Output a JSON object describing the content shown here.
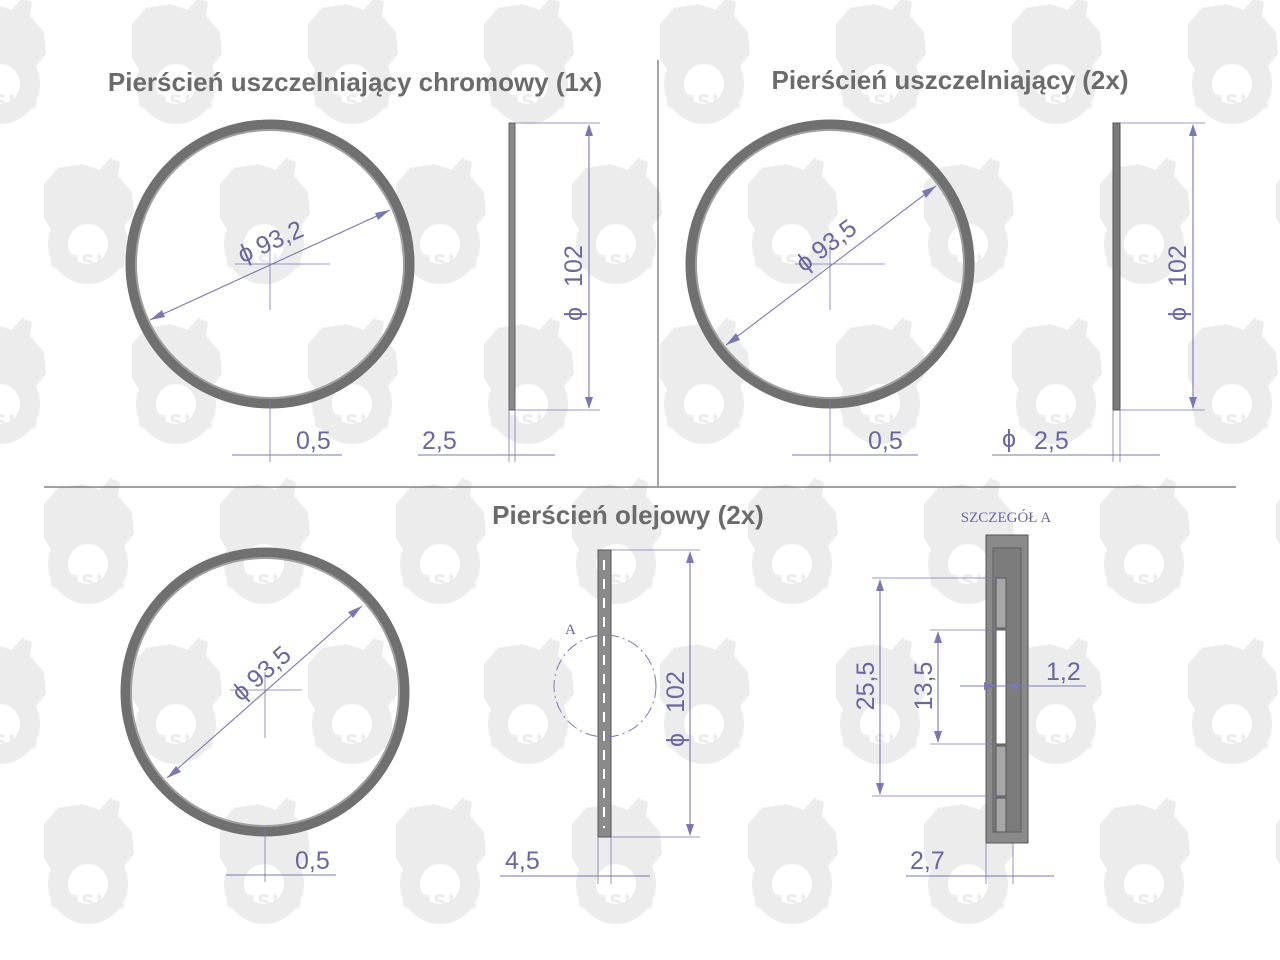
{
  "watermark": {
    "text": "URSUS",
    "icon": "ursus-bear-gear-logo",
    "color": "#ececec"
  },
  "colors": {
    "ring": "#707070",
    "dimension": "#6a66a0",
    "title": "#6b6b6b"
  },
  "panels": {
    "chrome_ring": {
      "title": "Pierścień uszczelniający chromowy (1x)",
      "inner_diameter": "93,2",
      "outer_diameter": "102",
      "gap": "0,5",
      "width": "2,5"
    },
    "seal_ring": {
      "title": "Pierścień uszczelniający (2x)",
      "inner_diameter": "93,5",
      "outer_diameter": "102",
      "gap": "0,5",
      "width": "2,5"
    },
    "oil_ring": {
      "title": "Pierścień olejowy (2x)",
      "inner_diameter": "93,5",
      "outer_diameter": "102",
      "gap": "0,5",
      "width": "4,5",
      "detail_marker": "A"
    },
    "detail_a": {
      "title": "SZCZEGÓŁ A",
      "pitch": "25,5",
      "slot_length": "13,5",
      "slot_width": "1,2",
      "width": "2,7"
    }
  },
  "symbols": {
    "diameter": "ϕ"
  }
}
